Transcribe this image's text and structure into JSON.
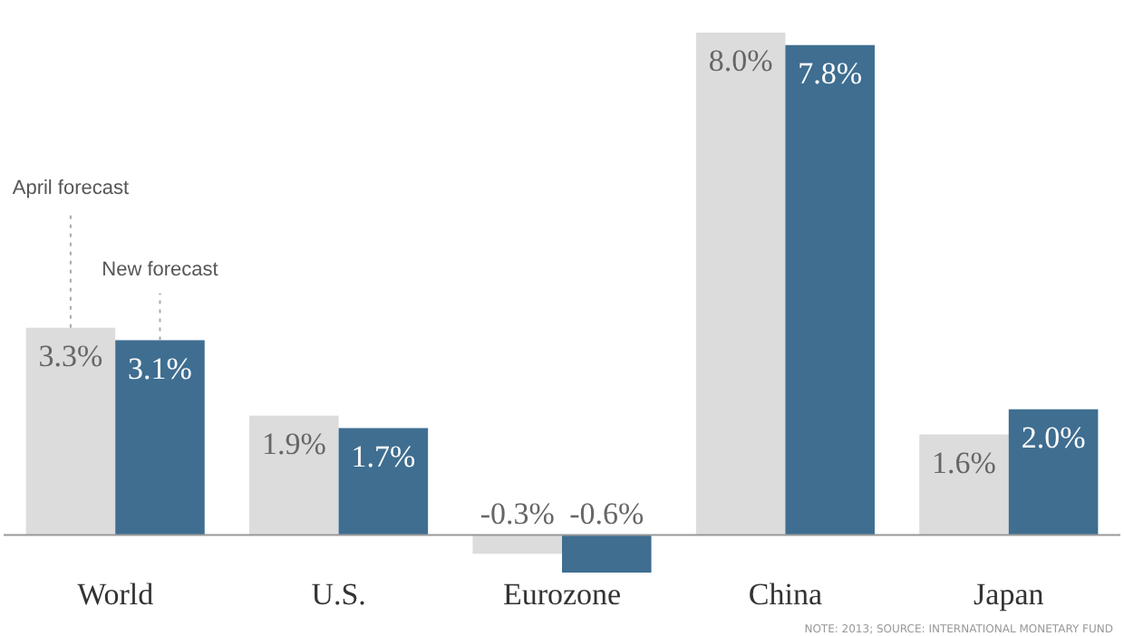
{
  "chart_data": {
    "type": "bar",
    "categories": [
      "World",
      "U.S.",
      "Eurozone",
      "China",
      "Japan"
    ],
    "series": [
      {
        "name": "April forecast",
        "color": "#dcdcdc",
        "values": [
          3.3,
          1.9,
          -0.3,
          8.0,
          1.6
        ],
        "value_labels": [
          "3.3%",
          "1.9%",
          "-0.3%",
          "8.0%",
          "1.6%"
        ]
      },
      {
        "name": "New forecast",
        "color": "#3f6e91",
        "values": [
          3.1,
          1.7,
          -0.6,
          7.8,
          2.0
        ],
        "value_labels": [
          "3.1%",
          "1.7%",
          "-0.6%",
          "7.8%",
          "2.0%"
        ]
      }
    ],
    "annotations": [
      "NOTE: 2013; SOURCE: INTERNATIONAL MONETARY FUND"
    ]
  }
}
